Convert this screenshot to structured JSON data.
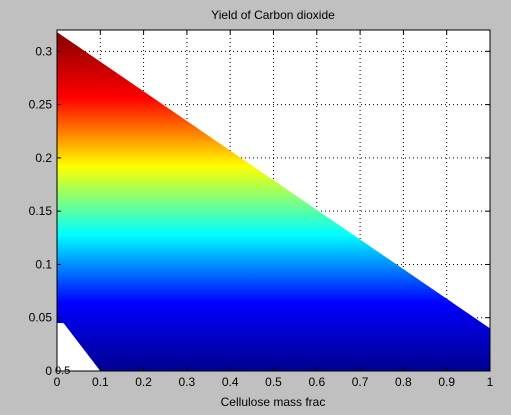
{
  "window": {
    "background": "#c0c0c0"
  },
  "chart_data": {
    "type": "heatmap",
    "title": "Yield of Carbon dioxide",
    "xlabel": "Cellulose mass frac",
    "ylabel": "",
    "xlim": [
      0,
      1
    ],
    "ylim": [
      0,
      0.32
    ],
    "grid": true,
    "x_ticks": [
      0,
      0.1,
      0.2,
      0.3,
      0.4,
      0.5,
      0.6,
      0.7,
      0.8,
      0.9,
      1
    ],
    "x_tick_labels": [
      "0",
      "0.1",
      "0.2",
      "0.3",
      "0.4",
      "0.5",
      "0.6",
      "0.7",
      "0.8",
      "0.9",
      "1"
    ],
    "y_ticks": [
      0,
      0.05,
      0.1,
      0.15,
      0.2,
      0.25,
      0.3
    ],
    "y_tick_labels": [
      "0",
      "0.05",
      "0.1",
      "0.15",
      "0.2",
      "0.25",
      "0.3"
    ],
    "stray_label": "0.5",
    "colormap": "jet",
    "colormap_stops": [
      "#00008f",
      "#0000ff",
      "#00ffff",
      "#ffff00",
      "#ff0000",
      "#800000"
    ],
    "color_range": [
      0,
      0.32
    ],
    "region_boundary": [
      {
        "x": 0,
        "y": 0.318
      },
      {
        "x": 1,
        "y": 0.04
      },
      {
        "x": 1,
        "y": 0
      },
      {
        "x": 0.1,
        "y": 0
      },
      {
        "x": 0.015,
        "y": 0.045
      },
      {
        "x": 0,
        "y": 0.045
      }
    ]
  }
}
